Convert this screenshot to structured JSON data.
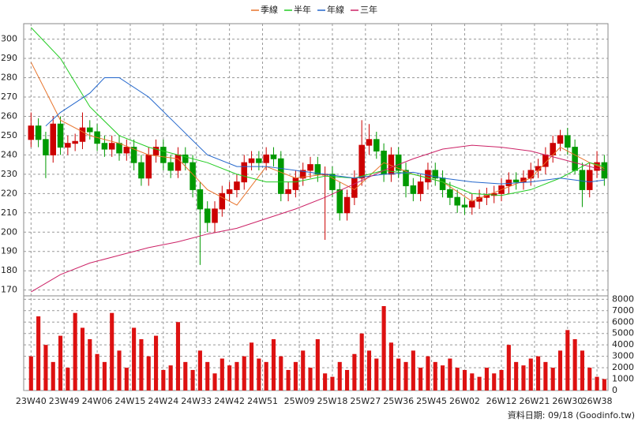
{
  "chart_data": [
    {
      "type": "candlestick",
      "x": [
        0,
        2,
        4,
        6,
        8,
        10,
        12,
        14,
        16,
        18,
        20,
        22,
        24,
        26,
        28,
        30,
        32,
        34,
        36,
        38,
        40,
        42,
        44,
        46,
        48,
        50,
        52,
        54,
        56,
        58,
        60,
        62,
        64,
        66,
        68,
        70,
        72,
        74,
        76,
        78,
        80,
        82,
        84,
        86,
        88,
        90,
        92,
        94,
        96,
        98,
        100,
        102,
        104,
        106,
        108,
        110,
        112,
        114,
        116,
        118,
        120,
        122,
        124,
        126,
        128,
        130,
        132,
        134,
        136,
        138,
        140,
        142,
        144,
        146,
        148,
        150,
        152,
        154,
        156
      ],
      "open": [
        248,
        255,
        248,
        240,
        256,
        244,
        246,
        247,
        254,
        252,
        246,
        243,
        246,
        241,
        244,
        236,
        228,
        240,
        244,
        236,
        232,
        240,
        236,
        222,
        212,
        205,
        212,
        220,
        222,
        226,
        236,
        238,
        236,
        240,
        238,
        220,
        222,
        228,
        232,
        235,
        230,
        230,
        222,
        210,
        218,
        228,
        245,
        248,
        242,
        230,
        240,
        232,
        224,
        220,
        226,
        232,
        228,
        222,
        218,
        214,
        213,
        216,
        218,
        219,
        220,
        224,
        227,
        226,
        228,
        232,
        234,
        240,
        246,
        250,
        244,
        232,
        222,
        232,
        236
      ],
      "high": [
        262,
        259,
        252,
        260,
        260,
        250,
        251,
        262,
        258,
        256,
        250,
        250,
        250,
        248,
        248,
        240,
        244,
        248,
        248,
        240,
        244,
        244,
        240,
        226,
        216,
        216,
        224,
        226,
        230,
        240,
        242,
        242,
        244,
        244,
        242,
        226,
        232,
        236,
        239,
        239,
        234,
        234,
        226,
        222,
        232,
        258,
        256,
        252,
        246,
        244,
        244,
        236,
        228,
        230,
        236,
        236,
        232,
        226,
        222,
        218,
        220,
        222,
        223,
        224,
        228,
        231,
        231,
        232,
        236,
        238,
        244,
        250,
        253,
        254,
        248,
        236,
        236,
        242,
        240
      ],
      "low": [
        244,
        244,
        228,
        236,
        240,
        240,
        242,
        243,
        248,
        242,
        239,
        239,
        237,
        237,
        232,
        224,
        224,
        236,
        232,
        228,
        228,
        232,
        218,
        183,
        200,
        200,
        208,
        216,
        218,
        222,
        232,
        232,
        232,
        234,
        216,
        216,
        218,
        224,
        228,
        226,
        196,
        218,
        206,
        206,
        214,
        224,
        240,
        238,
        226,
        226,
        228,
        218,
        216,
        216,
        222,
        224,
        218,
        214,
        210,
        209,
        209,
        212,
        214,
        215,
        216,
        220,
        222,
        222,
        224,
        228,
        230,
        236,
        242,
        240,
        230,
        213,
        218,
        228,
        224
      ],
      "close": [
        255,
        248,
        240,
        256,
        244,
        246,
        247,
        254,
        252,
        246,
        243,
        246,
        241,
        244,
        236,
        228,
        240,
        244,
        236,
        232,
        240,
        236,
        222,
        212,
        205,
        212,
        220,
        222,
        226,
        236,
        238,
        236,
        240,
        238,
        220,
        222,
        228,
        232,
        235,
        230,
        230,
        222,
        210,
        218,
        228,
        245,
        248,
        242,
        230,
        240,
        232,
        224,
        220,
        226,
        232,
        228,
        222,
        218,
        214,
        213,
        216,
        218,
        219,
        220,
        224,
        227,
        226,
        228,
        232,
        234,
        240,
        246,
        250,
        244,
        232,
        222,
        232,
        236,
        228
      ],
      "up_color": "#cc0000",
      "down_color": "#009900",
      "series": [
        {
          "name": "季線",
          "color": "#e8742c",
          "x": [
            0,
            8,
            16,
            24,
            32,
            40,
            48,
            56,
            64,
            72,
            80,
            88,
            96,
            104,
            112,
            120,
            128,
            136,
            144,
            152,
            156
          ],
          "values": [
            288,
            258,
            250,
            246,
            240,
            238,
            222,
            214,
            234,
            228,
            230,
            222,
            236,
            230,
            226,
            216,
            222,
            228,
            244,
            236,
            233
          ]
        },
        {
          "name": "半年",
          "color": "#22cc22",
          "x": [
            0,
            8,
            16,
            24,
            32,
            40,
            48,
            56,
            64,
            72,
            80,
            88,
            96,
            104,
            112,
            120,
            128,
            136,
            144,
            152,
            156
          ],
          "values": [
            306,
            290,
            265,
            250,
            244,
            240,
            236,
            230,
            226,
            226,
            229,
            228,
            232,
            230,
            226,
            220,
            219,
            222,
            228,
            236,
            234
          ]
        },
        {
          "name": "年線",
          "color": "#2266cc",
          "x": [
            4,
            8,
            16,
            20,
            24,
            32,
            40,
            48,
            56,
            64,
            72,
            80,
            88,
            96,
            104,
            112,
            120,
            128,
            136,
            144,
            152,
            156
          ],
          "values": [
            255,
            262,
            272,
            280,
            280,
            270,
            255,
            240,
            234,
            234,
            232,
            230,
            228,
            230,
            231,
            228,
            226,
            225,
            226,
            228,
            226,
            227
          ]
        },
        {
          "name": "三年",
          "color": "#cc2266",
          "x": [
            0,
            8,
            16,
            24,
            32,
            40,
            48,
            56,
            64,
            72,
            80,
            88,
            96,
            104,
            112,
            120,
            128,
            136,
            144,
            152,
            156
          ],
          "values": [
            169,
            178,
            184,
            188,
            192,
            195,
            199,
            202,
            207,
            212,
            218,
            225,
            232,
            238,
            243,
            245,
            244,
            242,
            238,
            234,
            232
          ]
        }
      ],
      "xlim": [
        -2,
        157
      ],
      "ylim": [
        167,
        308
      ],
      "yticks": [
        170,
        180,
        190,
        200,
        210,
        220,
        230,
        240,
        250,
        260,
        270,
        280,
        290,
        300
      ],
      "grid": true
    },
    {
      "type": "bar",
      "x": [
        0,
        2,
        4,
        6,
        8,
        10,
        12,
        14,
        16,
        18,
        20,
        22,
        24,
        26,
        28,
        30,
        32,
        34,
        36,
        38,
        40,
        42,
        44,
        46,
        48,
        50,
        52,
        54,
        56,
        58,
        60,
        62,
        64,
        66,
        68,
        70,
        72,
        74,
        76,
        78,
        80,
        82,
        84,
        86,
        88,
        90,
        92,
        94,
        96,
        98,
        100,
        102,
        104,
        106,
        108,
        110,
        112,
        114,
        116,
        118,
        120,
        122,
        124,
        126,
        128,
        130,
        132,
        134,
        136,
        138,
        140,
        142,
        144,
        146,
        148,
        150,
        152,
        154,
        156
      ],
      "values": [
        3000,
        6500,
        4000,
        2500,
        4800,
        2000,
        6800,
        5500,
        4500,
        3200,
        2500,
        6800,
        3500,
        2000,
        5500,
        4500,
        3000,
        4800,
        1800,
        2200,
        6000,
        2500,
        1800,
        3500,
        2500,
        1500,
        2800,
        2200,
        2500,
        3000,
        4200,
        2800,
        2500,
        4500,
        3000,
        1800,
        2500,
        3500,
        2000,
        4500,
        1500,
        1200,
        2500,
        1800,
        3200,
        5000,
        3500,
        2800,
        7400,
        4200,
        2800,
        2500,
        3500,
        2000,
        3000,
        2500,
        2200,
        2800,
        2000,
        1800,
        1500,
        1200,
        2000,
        1500,
        1800,
        4000,
        2500,
        2200,
        2800,
        3000,
        2500,
        2000,
        3500,
        5300,
        4500,
        3500,
        2000,
        1200,
        1000
      ],
      "color": "#dd1111",
      "xlim": [
        -2,
        157
      ],
      "ylim": [
        0,
        8300
      ],
      "yticks": [
        0,
        1000,
        2000,
        3000,
        4000,
        5000,
        6000,
        7000,
        8000
      ],
      "xticks": [
        {
          "value": 0,
          "label": "23W40"
        },
        {
          "value": 9,
          "label": "23W49"
        },
        {
          "value": 18,
          "label": "24W06"
        },
        {
          "value": 27,
          "label": "24W15"
        },
        {
          "value": 36,
          "label": "24W24"
        },
        {
          "value": 45,
          "label": "24W33"
        },
        {
          "value": 54,
          "label": "24W42"
        },
        {
          "value": 63,
          "label": "24W51"
        },
        {
          "value": 73,
          "label": "25W09"
        },
        {
          "value": 82,
          "label": "25W18"
        },
        {
          "value": 91,
          "label": "25W27"
        },
        {
          "value": 100,
          "label": "25W36"
        },
        {
          "value": 109,
          "label": "25W45"
        },
        {
          "value": 118,
          "label": "26W02"
        },
        {
          "value": 128,
          "label": "26W12"
        },
        {
          "value": 137,
          "label": "26W21"
        },
        {
          "value": 146,
          "label": "26W30"
        },
        {
          "value": 154,
          "label": "26W38"
        }
      ],
      "grid": true
    }
  ],
  "footer": "資料日期: 09/18 (Goodinfo.tw)"
}
